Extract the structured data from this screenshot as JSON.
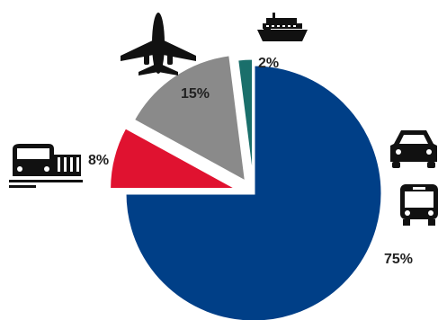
{
  "chart_data": {
    "type": "pie",
    "title": "",
    "exploded": true,
    "legend": "none",
    "slices": [
      {
        "label": "2%",
        "value": 2,
        "color": "#1a6f6b",
        "icon": "ship-icon"
      },
      {
        "label": "75%",
        "value": 75,
        "color": "#003f87",
        "icon": "car-and-bus-icons"
      },
      {
        "label": "8%",
        "value": 8,
        "color": "#e01230",
        "icon": "train-icon"
      },
      {
        "label": "15%",
        "value": 15,
        "color": "#8a8a8a",
        "icon": "airplane-icon"
      }
    ]
  }
}
